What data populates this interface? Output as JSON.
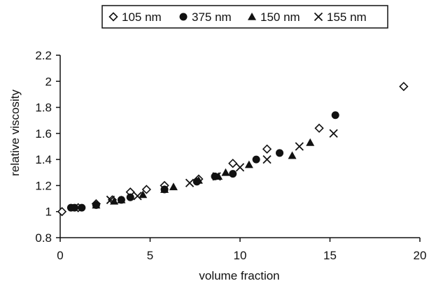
{
  "chart_data": {
    "type": "scatter",
    "title": "",
    "xlabel": "volume fraction",
    "ylabel": "relative viscosity",
    "xlim": [
      0,
      20
    ],
    "ylim": [
      0.8,
      2.2
    ],
    "x_ticks": [
      "0",
      "5",
      "10",
      "15",
      "20"
    ],
    "y_ticks": [
      "0.8",
      "1",
      "1.2",
      "1.4",
      "1.6",
      "1.8",
      "2",
      "2.2"
    ],
    "grid": false,
    "legend_position": "top",
    "series": [
      {
        "name": "105 nm",
        "marker": "diamond-open",
        "points": [
          [
            0.1,
            1.0
          ],
          [
            1.0,
            1.03
          ],
          [
            2.0,
            1.06
          ],
          [
            2.9,
            1.09
          ],
          [
            3.9,
            1.15
          ],
          [
            4.8,
            1.17
          ],
          [
            5.8,
            1.2
          ],
          [
            7.7,
            1.25
          ],
          [
            9.6,
            1.37
          ],
          [
            11.5,
            1.48
          ],
          [
            14.4,
            1.64
          ],
          [
            19.1,
            1.96
          ]
        ]
      },
      {
        "name": "375 nm",
        "marker": "circle-filled",
        "points": [
          [
            0.6,
            1.03
          ],
          [
            0.8,
            1.03
          ],
          [
            1.2,
            1.03
          ],
          [
            2.0,
            1.05
          ],
          [
            3.4,
            1.09
          ],
          [
            3.9,
            1.11
          ],
          [
            5.8,
            1.17
          ],
          [
            7.6,
            1.23
          ],
          [
            8.6,
            1.27
          ],
          [
            9.6,
            1.29
          ],
          [
            10.9,
            1.4
          ],
          [
            12.2,
            1.45
          ],
          [
            15.3,
            1.74
          ]
        ]
      },
      {
        "name": "150 nm",
        "marker": "triangle-filled",
        "points": [
          [
            2.0,
            1.05
          ],
          [
            3.0,
            1.08
          ],
          [
            3.4,
            1.09
          ],
          [
            4.6,
            1.13
          ],
          [
            5.8,
            1.17
          ],
          [
            6.3,
            1.19
          ],
          [
            7.7,
            1.24
          ],
          [
            8.8,
            1.27
          ],
          [
            9.2,
            1.3
          ],
          [
            10.5,
            1.36
          ],
          [
            12.9,
            1.43
          ],
          [
            13.9,
            1.53
          ]
        ]
      },
      {
        "name": "155 nm",
        "marker": "x",
        "points": [
          [
            2.8,
            1.09
          ],
          [
            4.3,
            1.12
          ],
          [
            7.2,
            1.22
          ],
          [
            8.7,
            1.27
          ],
          [
            10.0,
            1.34
          ],
          [
            11.5,
            1.4
          ],
          [
            13.3,
            1.5
          ],
          [
            15.2,
            1.6
          ]
        ]
      }
    ],
    "colors": {
      "marker": "#111111",
      "axis": "#111111",
      "background": "#ffffff"
    }
  }
}
